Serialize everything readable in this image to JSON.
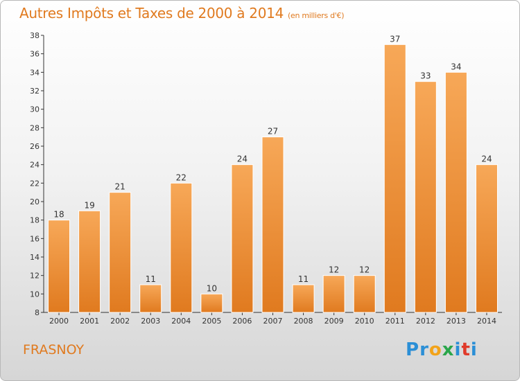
{
  "title": "Autres Impôts et Taxes de 2000 à 2014",
  "unit": "(en milliers d'€)",
  "commune": "FRASNOY",
  "logo": {
    "text": "Proxiti",
    "letters": [
      {
        "ch": "P",
        "color": "#2b8fd6"
      },
      {
        "ch": "r",
        "color": "#2b8fd6"
      },
      {
        "ch": "o",
        "color": "#f2a31a"
      },
      {
        "ch": "x",
        "color": "#2aa64a"
      },
      {
        "ch": "i",
        "color": "#2b8fd6"
      },
      {
        "ch": "t",
        "color": "#e03a2a"
      },
      {
        "ch": "i",
        "color": "#2b8fd6"
      }
    ]
  },
  "colors": {
    "accent": "#e07a1f",
    "bar_light": "#f7a858",
    "bar_dark": "#e07a1f",
    "bar_edge": "#ffffff"
  },
  "chart_data": {
    "type": "bar",
    "title": "Autres Impôts et Taxes de 2000 à 2014",
    "categories": [
      "2000",
      "2001",
      "2002",
      "2003",
      "2004",
      "2005",
      "2006",
      "2007",
      "2008",
      "2009",
      "2010",
      "2011",
      "2012",
      "2013",
      "2014"
    ],
    "values": [
      18,
      19,
      21,
      11,
      22,
      10,
      24,
      27,
      11,
      12,
      12,
      37,
      33,
      34,
      24
    ],
    "ylim": [
      8,
      38
    ],
    "yticks": [
      8,
      10,
      12,
      14,
      16,
      18,
      20,
      22,
      24,
      26,
      28,
      30,
      32,
      34,
      36,
      38
    ],
    "grid": false,
    "data_labels": true
  }
}
